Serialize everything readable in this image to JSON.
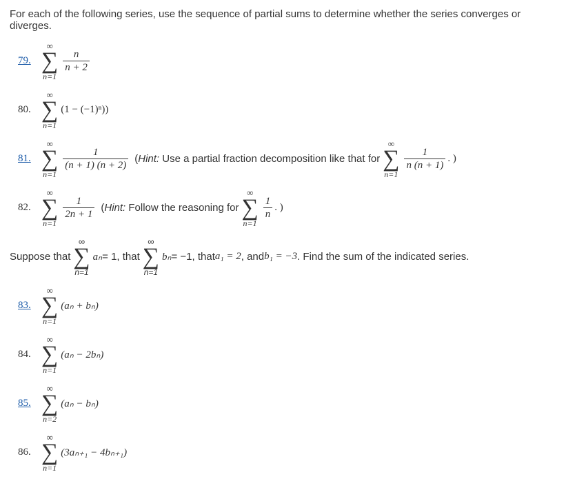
{
  "intro": "For each of the following series, use the sequence of partial sums to determine whether the series converges or diverges.",
  "p79": {
    "num": "79.",
    "top": "∞",
    "bot": "n=1",
    "fn": "n",
    "fd": "n + 2"
  },
  "p80": {
    "num": "80.",
    "top": "∞",
    "bot": "n=1",
    "body": "(1 − (−1)ⁿ))"
  },
  "p81": {
    "num": "81.",
    "top": "∞",
    "bot": "n=1",
    "fn": "1",
    "fd": "(n + 1) (n + 2)",
    "hint_pre": "(",
    "hint_i": "Hint:",
    "hint_txt": " Use a partial fraction decomposition like that for ",
    "h_top": "∞",
    "h_bot": "n=1",
    "h_fn": "1",
    "h_fd": "n (n + 1)",
    "tail": ". )"
  },
  "p82": {
    "num": "82.",
    "top": "∞",
    "bot": "n=1",
    "fn": "1",
    "fd": "2n + 1",
    "hint_pre": "(",
    "hint_i": "Hint:",
    "hint_txt": " Follow the reasoning for ",
    "h_top": "∞",
    "h_bot": "n=1",
    "h_fn": "1",
    "h_fd": "n",
    "tail": ". )"
  },
  "suppose": {
    "s1": "Suppose that ",
    "sa_top": "∞",
    "sa_bot": "n=1",
    "an": "aₙ",
    "eq1": " = 1, that ",
    "sb_top": "∞",
    "sb_bot": "n=1",
    "bn": "bₙ",
    "eq2": " = −1, that ",
    "a1": "a₁ = 2",
    "mid": ", and ",
    "b1": "b₁ = −3",
    "end": ". Find the sum of the indicated series."
  },
  "p83": {
    "num": "83.",
    "top": "∞",
    "bot": "n=1",
    "body": "(aₙ + bₙ)"
  },
  "p84": {
    "num": "84.",
    "top": "∞",
    "bot": "n=1",
    "body": "(aₙ − 2bₙ)"
  },
  "p85": {
    "num": "85.",
    "top": "∞",
    "bot": "n=2",
    "body": "(aₙ − bₙ)"
  },
  "p86": {
    "num": "86.",
    "top": "∞",
    "bot": "n=1",
    "body": "(3aₙ₊₁ − 4bₙ₊₁)"
  }
}
